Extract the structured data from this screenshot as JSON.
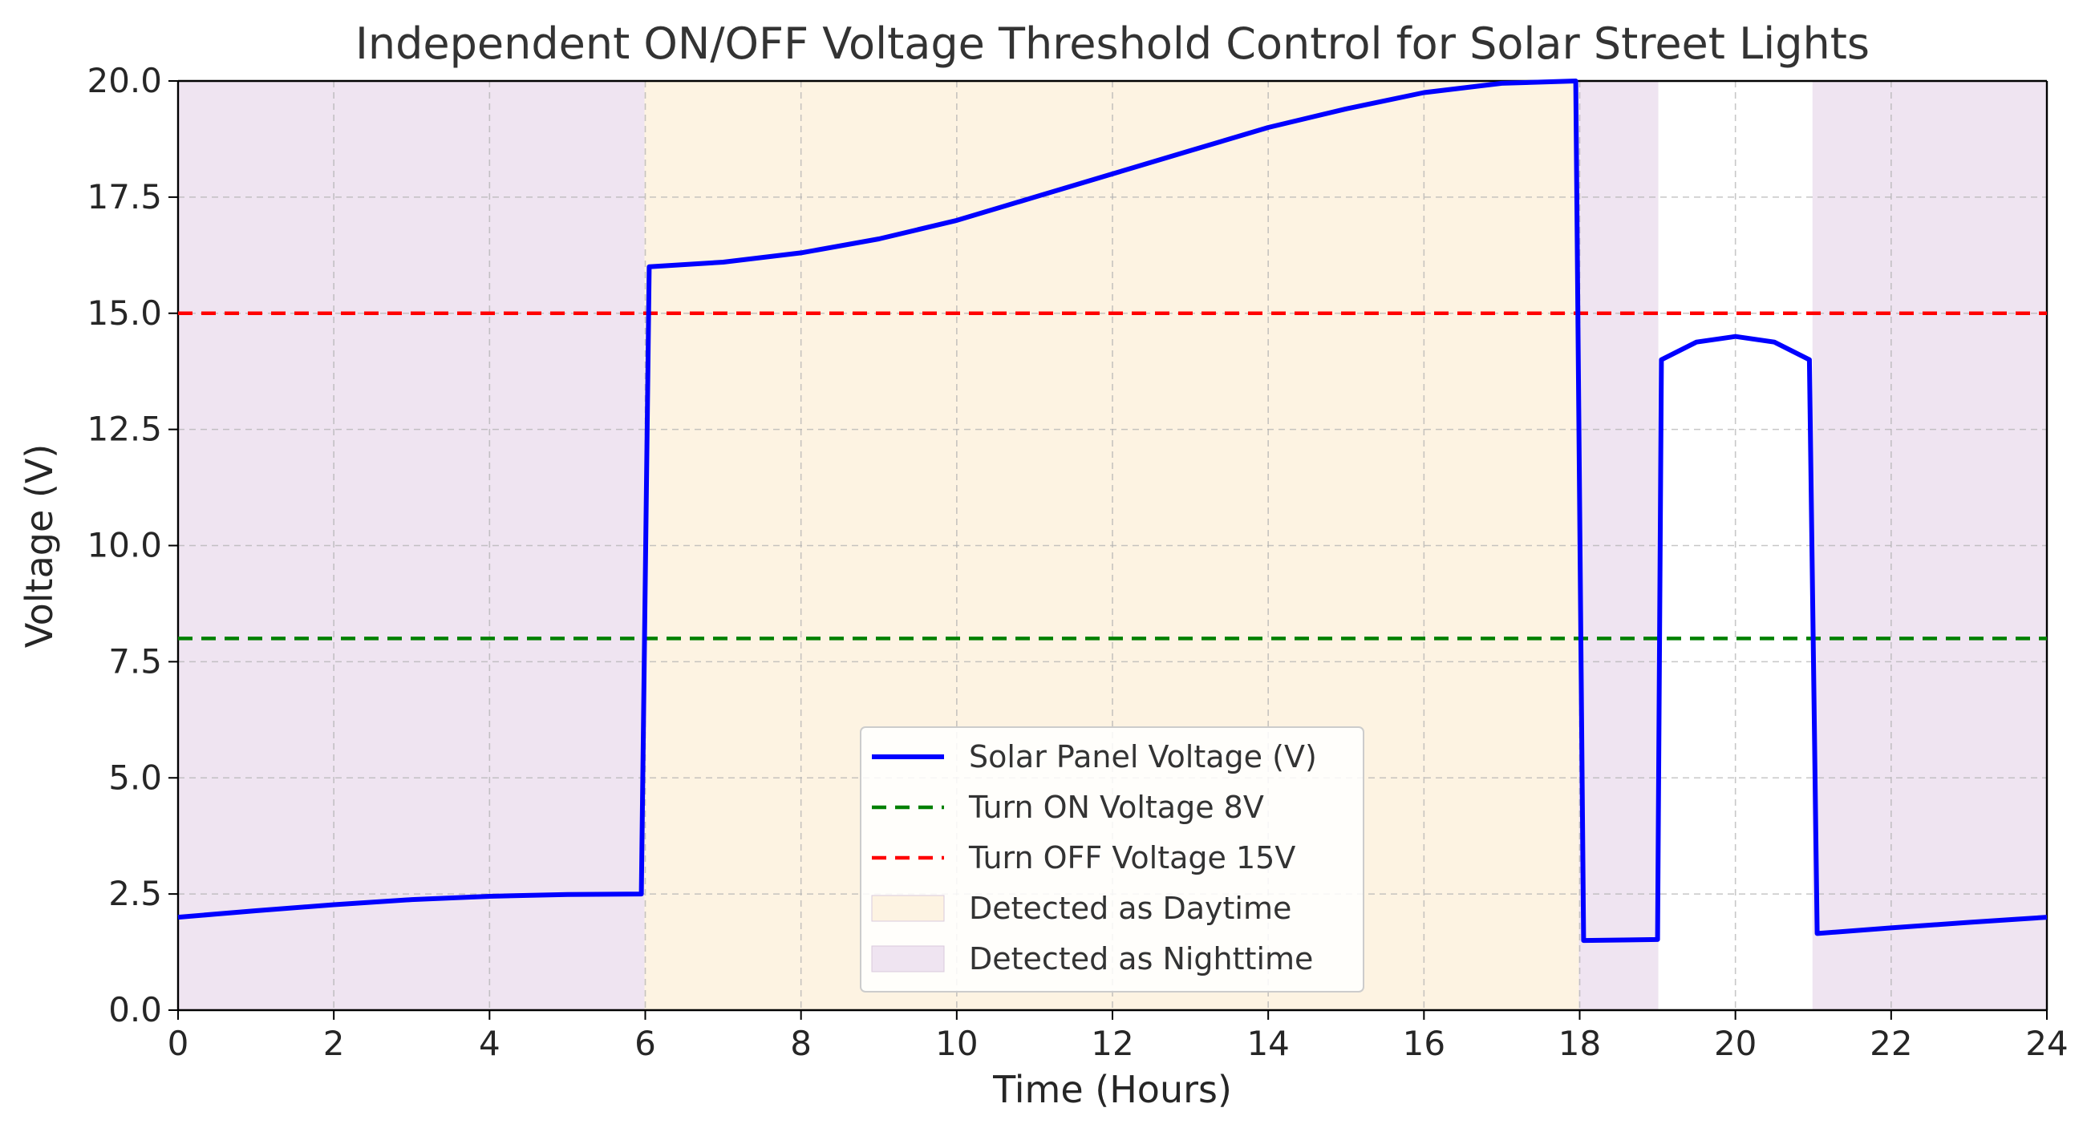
{
  "chart_data": {
    "type": "line",
    "title": "Independent ON/OFF Voltage Threshold Control for Solar Street Lights",
    "xlabel": "Time (Hours)",
    "ylabel": "Voltage (V)",
    "xlim": [
      0,
      24
    ],
    "ylim": [
      0,
      20
    ],
    "xticks": [
      0,
      2,
      4,
      6,
      8,
      10,
      12,
      14,
      16,
      18,
      20,
      22,
      24
    ],
    "xtick_labels": [
      "0",
      "2",
      "4",
      "6",
      "8",
      "10",
      "12",
      "14",
      "16",
      "18",
      "20",
      "22",
      "24"
    ],
    "yticks": [
      0,
      2.5,
      5,
      7.5,
      10,
      12.5,
      15,
      17.5,
      20
    ],
    "ytick_labels": [
      "0.0",
      "2.5",
      "5.0",
      "7.5",
      "10.0",
      "12.5",
      "15.0",
      "17.5",
      "20.0"
    ],
    "grid": true,
    "legend_position": "bottom-center",
    "series": [
      {
        "name": "Solar Panel Voltage (V)",
        "color": "#0000ff",
        "style": "solid",
        "x": [
          0,
          1,
          2,
          3,
          4,
          5,
          5.95,
          6.05,
          7,
          8,
          9,
          10,
          11,
          12,
          13,
          14,
          15,
          16,
          17,
          17.95,
          18.05,
          19,
          19.05,
          19.5,
          20,
          20.5,
          20.95,
          21.05,
          22,
          23,
          24
        ],
        "y": [
          2.0,
          2.14,
          2.27,
          2.38,
          2.45,
          2.49,
          2.5,
          16.0,
          16.1,
          16.3,
          16.6,
          17.0,
          17.5,
          18.0,
          18.5,
          19.0,
          19.4,
          19.75,
          19.95,
          20.0,
          1.5,
          1.52,
          14.0,
          14.38,
          14.5,
          14.38,
          14.0,
          1.65,
          1.77,
          1.89,
          2.0
        ]
      },
      {
        "name": "Turn ON Voltage 8V",
        "color": "#008000",
        "style": "dashed",
        "x": [
          0,
          24
        ],
        "y": [
          8,
          8
        ]
      },
      {
        "name": "Turn OFF Voltage 15V",
        "color": "#ff0000",
        "style": "dashed",
        "x": [
          0,
          24
        ],
        "y": [
          15,
          15
        ]
      }
    ],
    "shaded_regions": [
      {
        "name": "Detected as Nighttime",
        "x_start": 0,
        "x_end": 6,
        "color": "#efe4f1"
      },
      {
        "name": "Detected as Daytime",
        "x_start": 6,
        "x_end": 18,
        "color": "#fdf3e2"
      },
      {
        "name": "Detected as Nighttime",
        "x_start": 18,
        "x_end": 19,
        "color": "#efe4f1"
      },
      {
        "name": "Detected as Nighttime",
        "x_start": 21,
        "x_end": 24,
        "color": "#efe4f1"
      }
    ],
    "legend": [
      {
        "label": "Solar Panel Voltage (V)",
        "kind": "line",
        "color": "#0000ff",
        "style": "solid"
      },
      {
        "label": "Turn ON Voltage 8V",
        "kind": "line",
        "color": "#008000",
        "style": "dashed"
      },
      {
        "label": "Turn OFF Voltage 15V",
        "kind": "line",
        "color": "#ff0000",
        "style": "dashed"
      },
      {
        "label": "Detected as Daytime",
        "kind": "patch",
        "color": "#fdf3e2"
      },
      {
        "label": "Detected as Nighttime",
        "kind": "patch",
        "color": "#efe4f1"
      }
    ]
  }
}
